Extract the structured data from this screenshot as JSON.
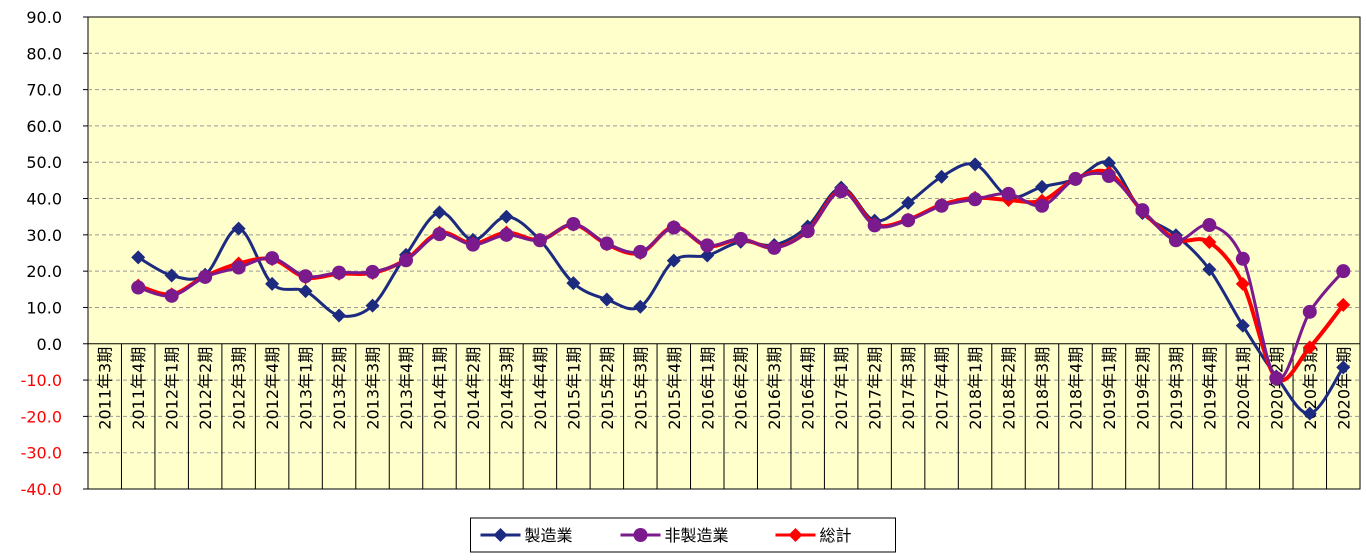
{
  "chart_data": {
    "type": "line",
    "categories": [
      "2011年3期",
      "2011年4期",
      "2012年1期",
      "2012年2期",
      "2012年3期",
      "2012年4期",
      "2013年1期",
      "2013年2期",
      "2013年3期",
      "2013年4期",
      "2014年1期",
      "2014年2期",
      "2014年3期",
      "2014年4期",
      "2015年1期",
      "2015年2期",
      "2015年3期",
      "2015年4期",
      "2016年1期",
      "2016年2期",
      "2016年3期",
      "2016年4期",
      "2017年1期",
      "2017年2期",
      "2017年3期",
      "2017年4期",
      "2018年1期",
      "2018年2期",
      "2018年3期",
      "2018年4期",
      "2019年1期",
      "2019年2期",
      "2019年3期",
      "2019年4期",
      "2020年1期",
      "2020年2期",
      "2020年3期",
      "2020年4期"
    ],
    "series": [
      {
        "name": "製造業",
        "color": "#1c2a80",
        "marker": "diamond",
        "values": [
          null,
          23.8,
          18.8,
          19.0,
          31.7,
          16.5,
          14.5,
          7.8,
          10.5,
          24.5,
          36.2,
          28.6,
          35.0,
          28.6,
          16.7,
          12.2,
          10.2,
          22.9,
          24.3,
          28.1,
          27.2,
          32.3,
          43.0,
          33.9,
          38.8,
          46.0,
          49.4,
          40.5,
          43.2,
          45.3,
          49.8,
          36.0,
          29.9,
          20.5,
          5.0,
          -9.0,
          -19.2,
          -6.5
        ]
      },
      {
        "name": "非製造業",
        "color": "#7b1a8c",
        "marker": "circle",
        "values": [
          null,
          15.5,
          13.2,
          18.4,
          21.0,
          23.6,
          18.6,
          19.6,
          19.8,
          23.0,
          30.2,
          27.3,
          30.0,
          28.5,
          33.0,
          27.6,
          25.3,
          32.0,
          27.1,
          28.9,
          26.4,
          31.0,
          42.0,
          32.6,
          34.0,
          38.0,
          39.8,
          41.3,
          38.0,
          45.4,
          46.2,
          36.8,
          28.5,
          32.7,
          23.4,
          -9.5,
          8.8,
          20.0
        ]
      },
      {
        "name": "総計",
        "color": "#ff0000",
        "marker": "diamond",
        "values": [
          null,
          16.0,
          13.6,
          18.6,
          22.1,
          23.3,
          18.3,
          19.3,
          19.5,
          23.2,
          30.6,
          27.6,
          30.6,
          28.6,
          32.8,
          27.4,
          25.0,
          32.2,
          26.9,
          28.8,
          26.5,
          31.1,
          42.3,
          32.9,
          34.2,
          38.3,
          40.2,
          39.6,
          39.4,
          45.4,
          47.1,
          36.5,
          28.8,
          28.0,
          16.5,
          -9.5,
          -1.0,
          10.7
        ]
      }
    ],
    "ylim": [
      -40,
      90
    ],
    "yticks": [
      {
        "value": -40,
        "label": "-40.0"
      },
      {
        "value": -30,
        "label": "-30.0"
      },
      {
        "value": -20,
        "label": "-20.0"
      },
      {
        "value": -10,
        "label": "-10.0"
      },
      {
        "value": 0,
        "label": "0.0"
      },
      {
        "value": 10,
        "label": "10.0"
      },
      {
        "value": 20,
        "label": "20.0"
      },
      {
        "value": 30,
        "label": "30.0"
      },
      {
        "value": 40,
        "label": "40.0"
      },
      {
        "value": 50,
        "label": "50.0"
      },
      {
        "value": 60,
        "label": "60.0"
      },
      {
        "value": 70,
        "label": "70.0"
      },
      {
        "value": 80,
        "label": "80.0"
      },
      {
        "value": 90,
        "label": "90.0"
      }
    ],
    "grid": true,
    "smooth": true,
    "plot_background": "#ffffcc",
    "negative_tick_color": "#ff0000",
    "legend": "bottom"
  }
}
